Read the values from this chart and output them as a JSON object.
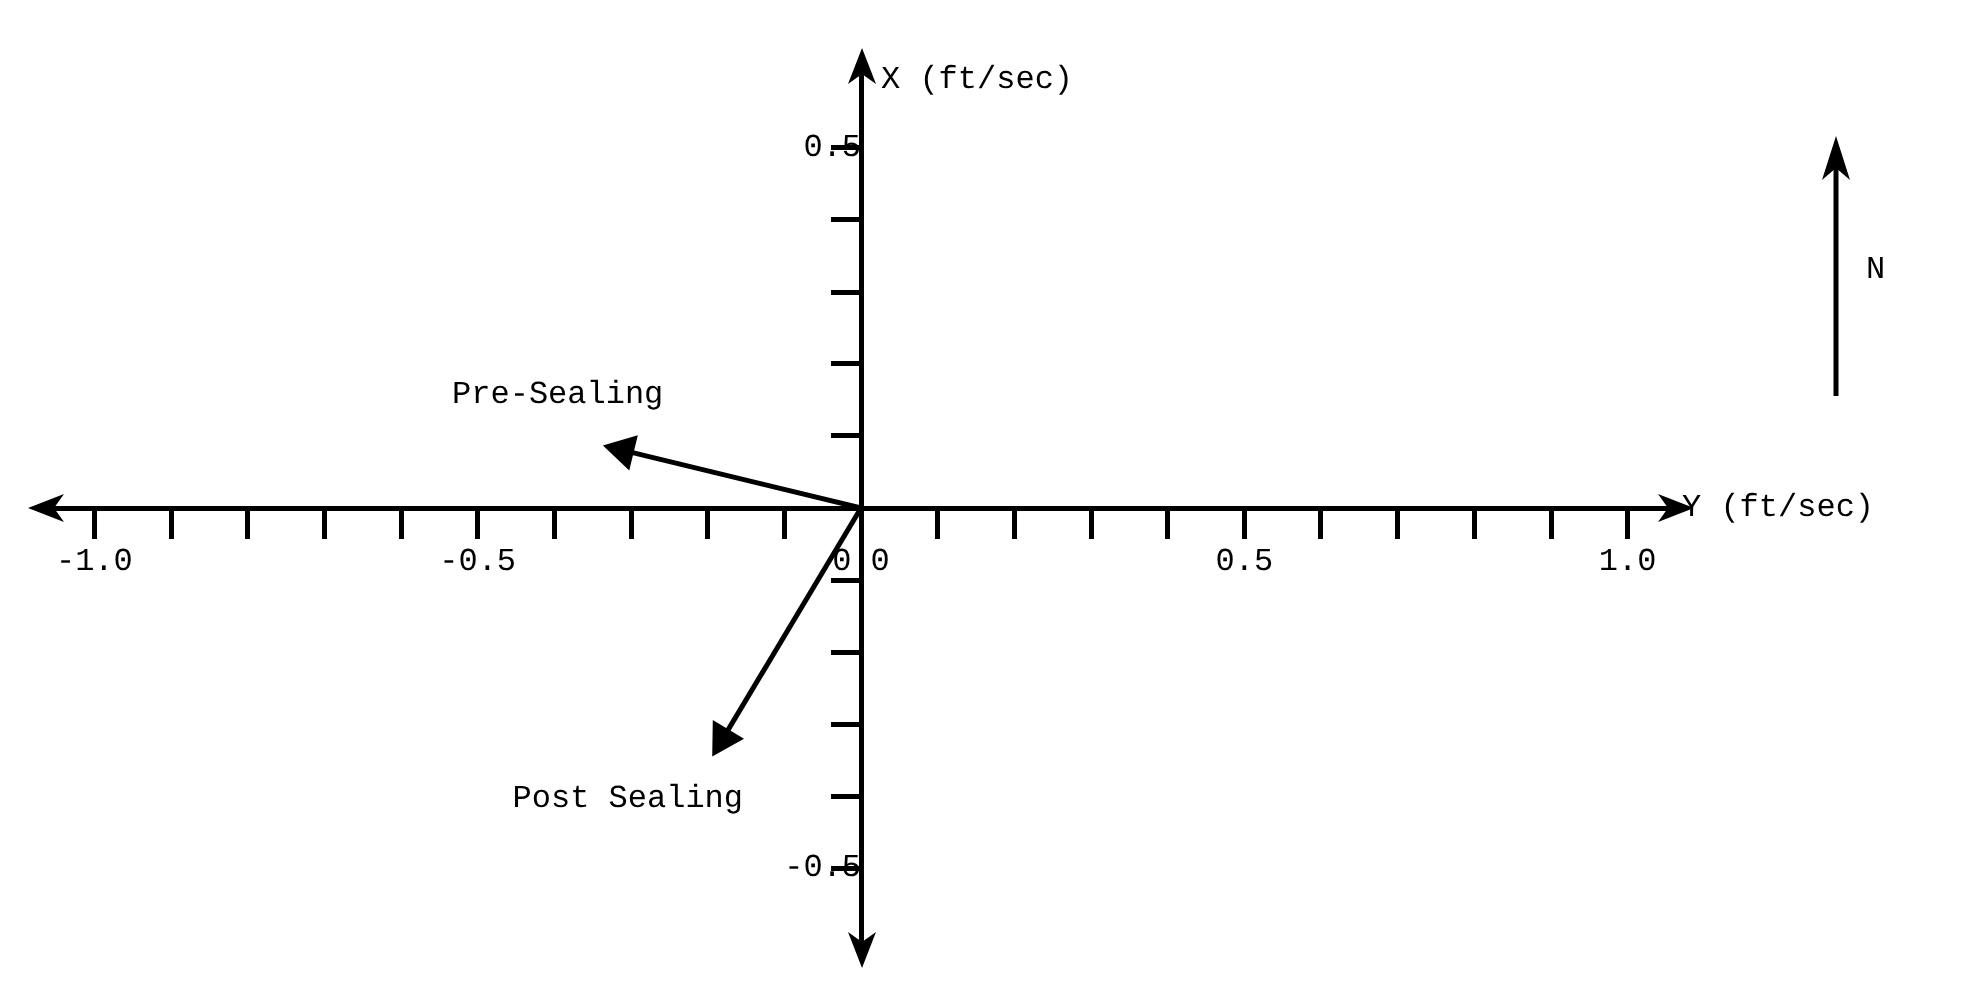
{
  "chart_data": {
    "type": "line",
    "xlabel": "Y (ft/sec)",
    "ylabel": "X (ft/sec)",
    "marker": "triangle",
    "xlim": [
      -1.05,
      1.05
    ],
    "ylim": [
      -0.6,
      0.6
    ],
    "xticks": [
      {
        "value": -1.0,
        "label": "-1.0"
      },
      {
        "value": -0.9,
        "label": null
      },
      {
        "value": -0.8,
        "label": null
      },
      {
        "value": -0.7,
        "label": null
      },
      {
        "value": -0.6,
        "label": null
      },
      {
        "value": -0.5,
        "label": "-0.5"
      },
      {
        "value": -0.4,
        "label": null
      },
      {
        "value": -0.3,
        "label": null
      },
      {
        "value": -0.2,
        "label": null
      },
      {
        "value": -0.1,
        "label": null
      },
      {
        "value": 0,
        "label": "0.0"
      },
      {
        "value": 0.1,
        "label": null
      },
      {
        "value": 0.2,
        "label": null
      },
      {
        "value": 0.3,
        "label": null
      },
      {
        "value": 0.4,
        "label": null
      },
      {
        "value": 0.5,
        "label": "0.5"
      },
      {
        "value": 0.6,
        "label": null
      },
      {
        "value": 0.7,
        "label": null
      },
      {
        "value": 0.8,
        "label": null
      },
      {
        "value": 0.9,
        "label": null
      },
      {
        "value": 1.0,
        "label": "1.0"
      }
    ],
    "yticks": [
      {
        "value": -0.5,
        "label": "-0.5"
      },
      {
        "value": -0.4,
        "label": null
      },
      {
        "value": -0.3,
        "label": null
      },
      {
        "value": -0.2,
        "label": null
      },
      {
        "value": -0.1,
        "label": null
      },
      {
        "value": 0.1,
        "label": null
      },
      {
        "value": 0.2,
        "label": null
      },
      {
        "value": 0.3,
        "label": null
      },
      {
        "value": 0.4,
        "label": null
      },
      {
        "value": 0.5,
        "label": "0.5"
      }
    ],
    "series": [
      {
        "name": "Pre-Sealing",
        "color": "#000000",
        "x": [
          0,
          -0.31
        ],
        "values": [
          0,
          0.08
        ]
      },
      {
        "name": "Post Sealing",
        "color": "#000000",
        "x": [
          0,
          -0.18
        ],
        "values": [
          0,
          -0.32
        ]
      }
    ],
    "annotations": [
      "N"
    ]
  }
}
